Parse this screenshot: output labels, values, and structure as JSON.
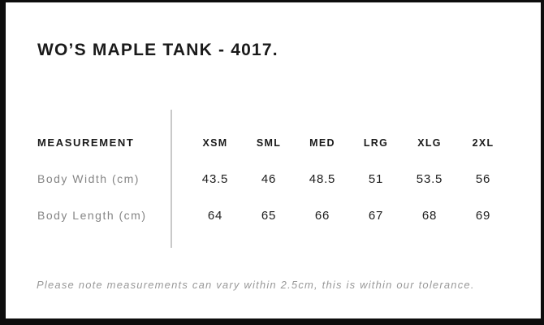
{
  "title": "WO’S MAPLE TANK - 4017.",
  "table": {
    "measurement_header": "MEASUREMENT",
    "size_headers": [
      "XSM",
      "SML",
      "MED",
      "LRG",
      "XLG",
      "2XL"
    ],
    "rows": [
      {
        "label": "Body Width (cm)",
        "values": [
          "43.5",
          "46",
          "48.5",
          "51",
          "53.5",
          "56"
        ]
      },
      {
        "label": "Body Length (cm)",
        "values": [
          "64",
          "65",
          "66",
          "67",
          "68",
          "69"
        ]
      }
    ]
  },
  "footer_note": "Please note measurements can vary within 2.5cm, this is within our tolerance.",
  "colors": {
    "frame": "#0d0d0d",
    "text_dark": "#1a1a1a",
    "label_gray": "#858585",
    "note_gray": "#999999",
    "divider": "#c9c9c9"
  }
}
